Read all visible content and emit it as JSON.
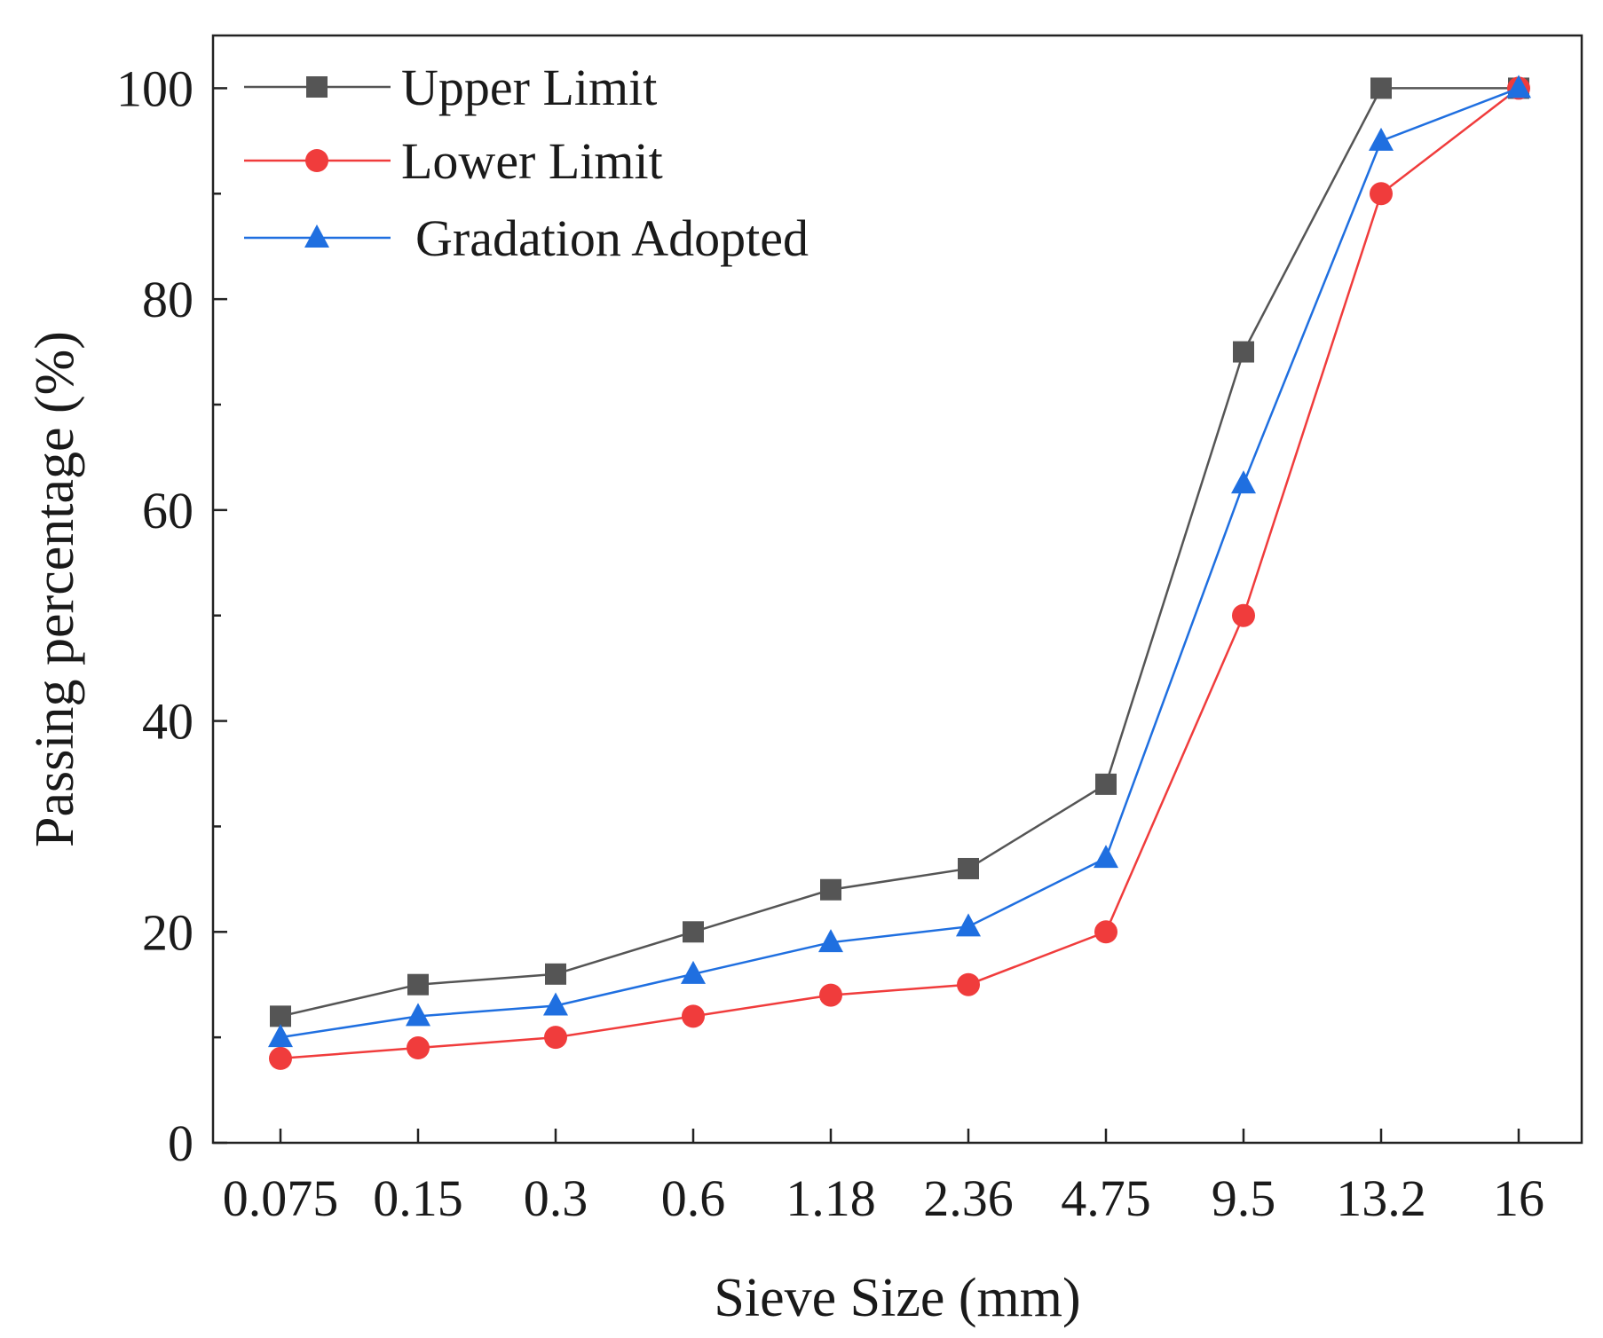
{
  "chart_data": {
    "type": "line",
    "title": "",
    "xlabel": "Sieve Size (mm)",
    "ylabel": "Passing percentage (%)",
    "categories": [
      "0.075",
      "0.15",
      "0.3",
      "0.6",
      "1.18",
      "2.36",
      "4.75",
      "9.5",
      "13.2",
      "16"
    ],
    "ylim": [
      0,
      105
    ],
    "yticks": [
      0,
      20,
      40,
      60,
      80,
      100
    ],
    "grid": false,
    "legend_position": "top-left",
    "series": [
      {
        "name": "Upper Limit",
        "marker": "square",
        "color": "#555555",
        "values": [
          12,
          15,
          16,
          20,
          24,
          26,
          34,
          75,
          100,
          100
        ]
      },
      {
        "name": "Lower Limit",
        "marker": "circle",
        "color": "#f03c3c",
        "values": [
          8,
          9,
          10,
          12,
          14,
          15,
          20,
          50,
          90,
          100
        ]
      },
      {
        "name": "Gradation Adopted",
        "marker": "triangle",
        "color": "#1f6fe0",
        "values": [
          10,
          12,
          13,
          16,
          19,
          20.5,
          27,
          62.5,
          95,
          100
        ]
      }
    ]
  }
}
